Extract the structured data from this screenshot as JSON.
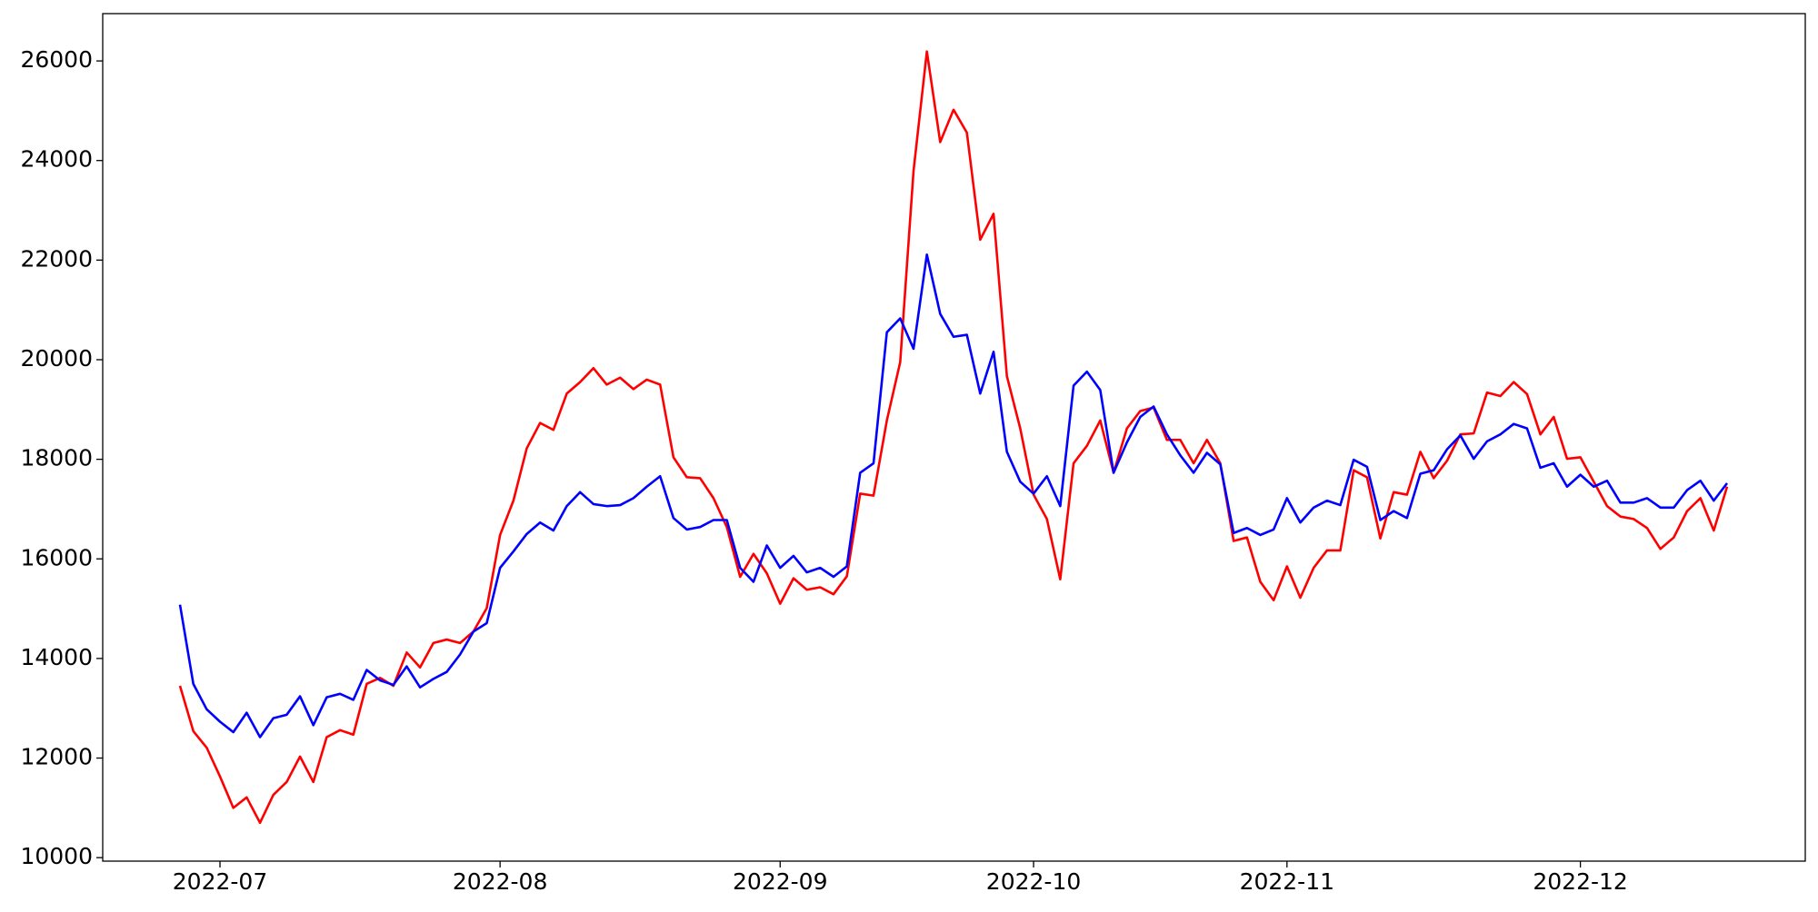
{
  "chart_data": {
    "type": "line",
    "categories": [
      null,
      null,
      null,
      "2022-07",
      null,
      null,
      null,
      null,
      null,
      null,
      null,
      null,
      null,
      null,
      null,
      null,
      null,
      null,
      null,
      null,
      null,
      null,
      null,
      null,
      "2022-08",
      null,
      null,
      null,
      null,
      null,
      null,
      null,
      null,
      null,
      null,
      null,
      null,
      null,
      null,
      null,
      null,
      null,
      null,
      null,
      null,
      "2022-09",
      null,
      null,
      null,
      null,
      null,
      null,
      null,
      null,
      null,
      null,
      null,
      null,
      null,
      null,
      null,
      null,
      null,
      null,
      "2022-10",
      null,
      null,
      null,
      null,
      null,
      null,
      null,
      null,
      null,
      null,
      null,
      null,
      null,
      null,
      null,
      null,
      null,
      null,
      "2022-11",
      null,
      null,
      null,
      null,
      null,
      null,
      null,
      null,
      null,
      null,
      null,
      null,
      null,
      null,
      null,
      null,
      null,
      null,
      null,
      null,
      null,
      "2022-12",
      null,
      null,
      null,
      null,
      null,
      null,
      null,
      null,
      null,
      null,
      null
    ],
    "series": [
      {
        "color": "#ff0000",
        "values": [
          13450,
          12540,
          12210,
          11630,
          11000,
          11210,
          10700,
          11260,
          11520,
          12030,
          11520,
          12420,
          12560,
          12470,
          13490,
          13610,
          13450,
          14120,
          13820,
          14310,
          14380,
          14310,
          14540,
          15010,
          16480,
          17170,
          18220,
          18730,
          18590,
          19320,
          19550,
          19830,
          19500,
          19640,
          19410,
          19600,
          19500,
          18040,
          17640,
          17620,
          17220,
          16640,
          15640,
          16100,
          15710,
          15100,
          15610,
          15380,
          15430,
          15290,
          15650,
          17310,
          17270,
          18780,
          19950,
          23790,
          26190,
          24370,
          25020,
          24560,
          22410,
          22930,
          19670,
          18620,
          17290,
          16800,
          15590,
          17920,
          18270,
          18780,
          17730,
          18620,
          18970,
          19040,
          18390,
          18390,
          17920,
          18390,
          17920,
          16360,
          16430,
          15540,
          15170,
          15850,
          15220,
          15820,
          16170,
          16170,
          17780,
          17640,
          16410,
          17340,
          17290,
          18150,
          17620,
          17970,
          18500,
          18520,
          19340,
          19270,
          19550,
          19310,
          18500,
          18850,
          18010,
          18040,
          17550,
          17060,
          16850,
          16800,
          16620,
          16200,
          16430,
          16960,
          17220,
          16570,
          17450
        ]
      },
      {
        "color": "#0000ff",
        "values": [
          15080,
          13490,
          12980,
          12730,
          12520,
          12910,
          12420,
          12800,
          12870,
          13240,
          12660,
          13220,
          13290,
          13170,
          13770,
          13560,
          13470,
          13840,
          13420,
          13590,
          13730,
          14080,
          14540,
          14710,
          15820,
          16150,
          16500,
          16730,
          16570,
          17060,
          17340,
          17100,
          17060,
          17080,
          17220,
          17450,
          17660,
          16820,
          16590,
          16640,
          16780,
          16780,
          15820,
          15540,
          16270,
          15820,
          16060,
          15730,
          15820,
          15640,
          15850,
          17730,
          17920,
          20550,
          20830,
          20220,
          22110,
          20920,
          20460,
          20500,
          19320,
          20160,
          18150,
          17550,
          17310,
          17660,
          17060,
          19480,
          19760,
          19390,
          17730,
          18340,
          18850,
          19060,
          18500,
          18080,
          17730,
          18130,
          17900,
          16520,
          16620,
          16480,
          16590,
          17220,
          16730,
          17030,
          17170,
          17080,
          17990,
          17850,
          16780,
          16960,
          16820,
          17710,
          17780,
          18200,
          18480,
          18010,
          18360,
          18500,
          18710,
          18620,
          17830,
          17920,
          17450,
          17690,
          17450,
          17570,
          17130,
          17130,
          17220,
          17030,
          17030,
          17380,
          17570,
          17170,
          17520
        ]
      }
    ],
    "ylim": [
      9930,
      26950
    ],
    "yticks": [
      10000,
      12000,
      14000,
      16000,
      18000,
      20000,
      22000,
      24000,
      26000
    ],
    "grid": false
  }
}
